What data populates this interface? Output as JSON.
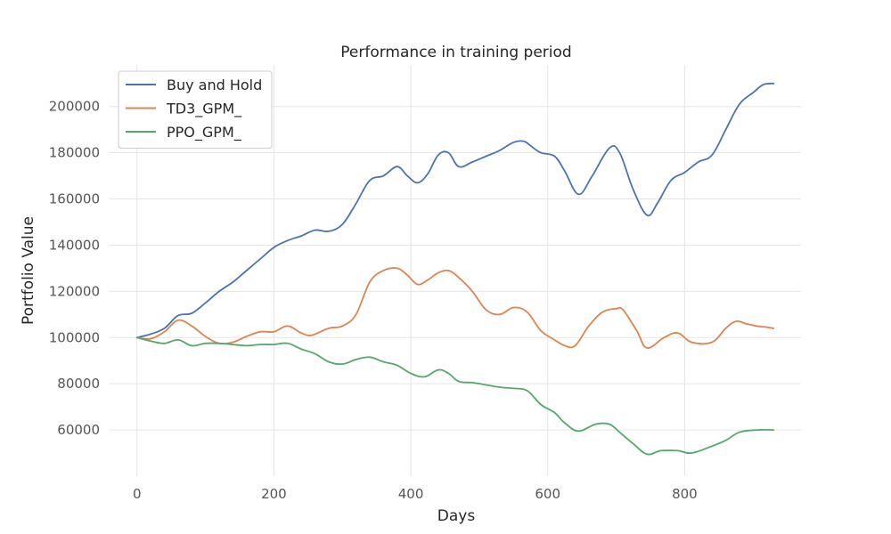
{
  "chart_data": {
    "type": "line",
    "title": "Performance in training period",
    "xlabel": "Days",
    "ylabel": "Portfolio Value",
    "xlim": [
      -40,
      970
    ],
    "ylim": [
      40000,
      218000
    ],
    "xticks": [
      0,
      200,
      400,
      600,
      800
    ],
    "yticks": [
      60000,
      80000,
      100000,
      120000,
      140000,
      160000,
      180000,
      200000
    ],
    "grid": true,
    "legend_position": "top-left",
    "series": [
      {
        "name": "Buy and Hold",
        "color": "#4c72b0",
        "x": [
          0,
          20,
          40,
          60,
          80,
          100,
          120,
          140,
          160,
          180,
          200,
          220,
          240,
          260,
          280,
          300,
          320,
          340,
          360,
          380,
          395,
          410,
          425,
          440,
          455,
          470,
          490,
          510,
          530,
          550,
          565,
          575,
          590,
          610,
          625,
          645,
          665,
          690,
          705,
          725,
          745,
          760,
          780,
          800,
          820,
          840,
          860,
          880,
          900,
          915,
          930
        ],
        "y": [
          100000,
          101500,
          104000,
          109500,
          110500,
          115000,
          120000,
          124000,
          129000,
          134000,
          139000,
          142000,
          144000,
          146500,
          146000,
          149000,
          158000,
          168000,
          170000,
          174000,
          170000,
          167000,
          171000,
          179000,
          180000,
          174000,
          176000,
          178500,
          181000,
          184500,
          185000,
          183000,
          180000,
          178500,
          172000,
          162000,
          170000,
          182000,
          180000,
          164000,
          153000,
          158000,
          168000,
          171500,
          176000,
          179000,
          190000,
          201000,
          206000,
          209500,
          210000
        ]
      },
      {
        "name": "TD3_GPM_",
        "color": "#dd8452",
        "x": [
          0,
          20,
          40,
          60,
          80,
          100,
          120,
          140,
          160,
          180,
          200,
          220,
          240,
          255,
          280,
          300,
          320,
          340,
          360,
          380,
          395,
          410,
          425,
          440,
          455,
          470,
          490,
          510,
          530,
          550,
          570,
          590,
          610,
          625,
          640,
          660,
          680,
          700,
          710,
          730,
          745,
          770,
          790,
          810,
          840,
          860,
          875,
          890,
          905,
          920,
          930
        ],
        "y": [
          100000,
          99500,
          102500,
          107500,
          105000,
          100500,
          97500,
          98000,
          100500,
          102500,
          102500,
          105000,
          102000,
          101000,
          104000,
          105000,
          110000,
          124000,
          129000,
          130000,
          127000,
          123000,
          125000,
          128000,
          129000,
          126000,
          120000,
          112000,
          110000,
          113000,
          111000,
          103000,
          99000,
          96500,
          96500,
          105000,
          111000,
          112500,
          112000,
          103000,
          95500,
          100000,
          102000,
          98000,
          98000,
          104000,
          107000,
          106000,
          105000,
          104500,
          104000
        ]
      },
      {
        "name": "PPO_GPM_",
        "color": "#55a868",
        "x": [
          0,
          20,
          40,
          60,
          80,
          100,
          120,
          140,
          160,
          180,
          200,
          220,
          240,
          260,
          280,
          300,
          320,
          340,
          360,
          380,
          400,
          420,
          440,
          455,
          470,
          490,
          510,
          530,
          550,
          570,
          590,
          610,
          625,
          645,
          670,
          690,
          705,
          725,
          745,
          765,
          790,
          810,
          840,
          860,
          880,
          905,
          930
        ],
        "y": [
          100000,
          98500,
          97500,
          99000,
          96500,
          97500,
          97500,
          97000,
          96500,
          97000,
          97000,
          97500,
          95000,
          93000,
          89500,
          88500,
          90500,
          91500,
          89500,
          88000,
          84500,
          83000,
          86000,
          84500,
          81000,
          80500,
          79500,
          78500,
          78000,
          77000,
          71000,
          67500,
          63000,
          59500,
          62500,
          62500,
          59000,
          54000,
          49500,
          51000,
          51000,
          50000,
          53000,
          55500,
          59000,
          60000,
          60000
        ]
      }
    ]
  }
}
